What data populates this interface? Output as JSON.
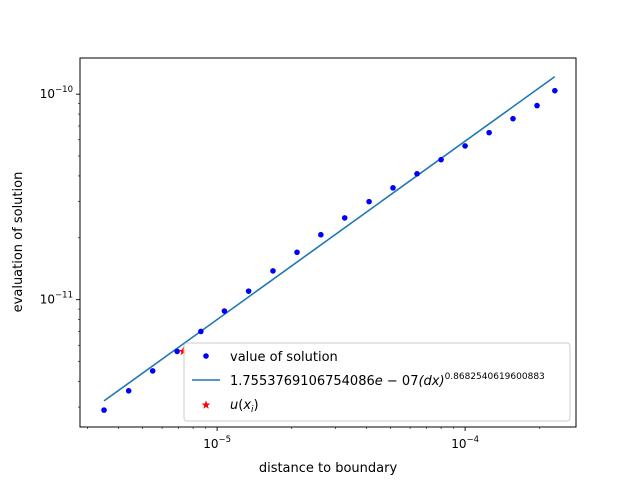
{
  "chart_data": {
    "type": "scatter",
    "xscale": "log",
    "yscale": "log",
    "xlabel": "distance to boundary",
    "ylabel": "evaluation of solution",
    "xlim": [
      2.8e-06,
      0.00028
    ],
    "ylim": [
      2.4e-12,
      1.5e-10
    ],
    "x_major_ticks": [
      1e-05,
      0.0001
    ],
    "x_major_tick_labels": [
      {
        "base": "10",
        "exp": "−5"
      },
      {
        "base": "10",
        "exp": "−4"
      }
    ],
    "y_major_ticks": [
      1e-11,
      1e-10
    ],
    "y_major_tick_labels": [
      {
        "base": "10",
        "exp": "−11"
      },
      {
        "base": "10",
        "exp": "−10"
      }
    ],
    "grid": false,
    "legend": {
      "location": "lower-right",
      "entries": [
        {
          "marker": "dot",
          "color": "#0000ff",
          "label": "value of solution"
        },
        {
          "marker": "line",
          "color": "#1f77b4",
          "label_base": "1.7553769106754086",
          "label_e": "e",
          "label_minus": " − ",
          "label_exp10": "07",
          "label_dx": "(dx)",
          "label_power": "0.8682540619600883"
        },
        {
          "marker": "star",
          "color": "#ff0000",
          "label_u": "u",
          "label_paren_open": "(",
          "label_x": "x",
          "label_sub": "i",
          "label_paren_close": ")"
        }
      ]
    },
    "series": [
      {
        "type": "scatter",
        "marker": "dot",
        "color": "#0000ff",
        "x": [
          3.5e-06,
          4.4e-06,
          5.5e-06,
          6.9e-06,
          8.6e-06,
          1.07e-05,
          1.34e-05,
          1.68e-05,
          2.1e-05,
          2.62e-05,
          3.27e-05,
          4.1e-05,
          5.12e-05,
          6.4e-05,
          8e-05,
          0.0001,
          0.000125,
          0.000156,
          0.000195,
          0.00023
        ],
        "y": [
          2.9e-12,
          3.6e-12,
          4.5e-12,
          5.6e-12,
          7e-12,
          8.8e-12,
          1.1e-11,
          1.38e-11,
          1.7e-11,
          2.07e-11,
          2.5e-11,
          3e-11,
          3.5e-11,
          4.1e-11,
          4.8e-11,
          5.6e-11,
          6.5e-11,
          7.6e-11,
          8.8e-11,
          1.04e-10
        ]
      },
      {
        "type": "line",
        "color": "#1f77b4",
        "coefficient": 1.7553769106754086e-07,
        "exponent": 0.8682540619600883,
        "x_range": [
          3.5e-06,
          0.00023
        ]
      },
      {
        "type": "scatter",
        "marker": "star",
        "color": "#ff0000",
        "x": [
          7.3e-06
        ],
        "y": [
          5.6e-12
        ]
      }
    ]
  }
}
